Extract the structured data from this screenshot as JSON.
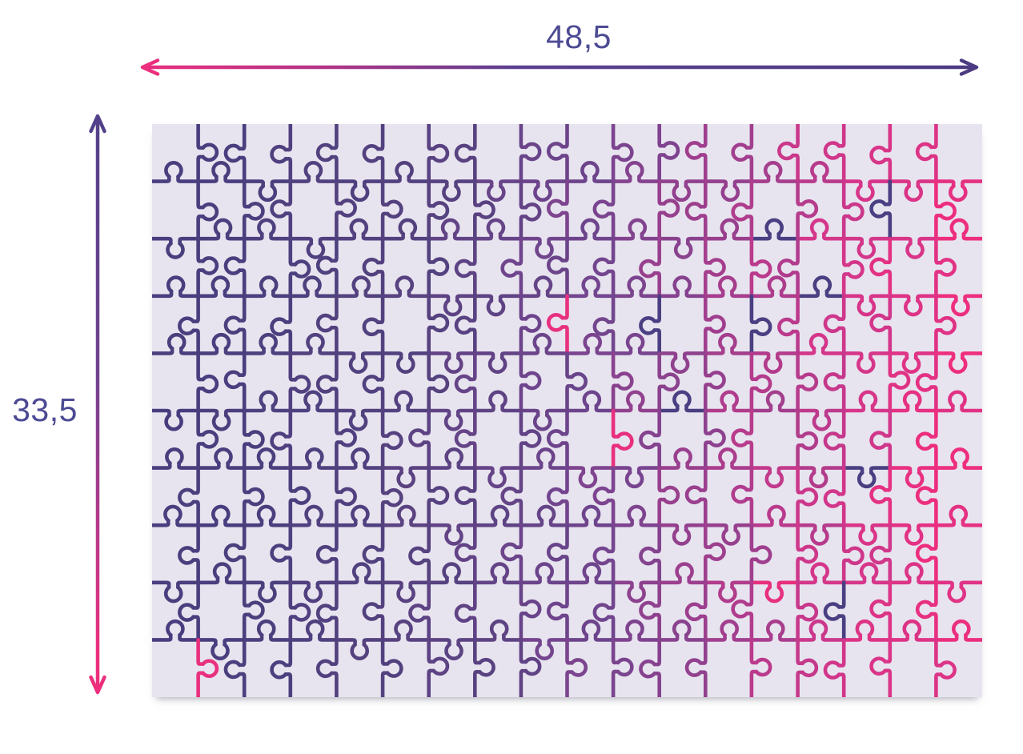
{
  "figure": {
    "description": "Jigsaw puzzle dimensions diagram"
  },
  "dimensions": {
    "width_label": "48,5",
    "height_label": "33,5"
  },
  "colors": {
    "page_bg": "#ffffff",
    "puzzle_bg": "#e7e4ef",
    "label_text": "#4d4a94",
    "accent_pink": "#e8307f",
    "accent_indigo": "#4a3f82",
    "arrow_gradient_h": {
      "start": "#ec2e7d",
      "mid1": "#b33487",
      "mid2": "#5b4190",
      "end": "#4c3b81"
    },
    "arrow_gradient_v": {
      "start": "#53408a",
      "mid1": "#70418e",
      "mid2": "#b8388a",
      "end": "#ec2e7d"
    }
  },
  "puzzle": {
    "rows": 10,
    "cols": 18,
    "view_width": 1037,
    "view_height": 716,
    "stroke_width": 4.6,
    "seed": 1337,
    "color_ramp": [
      [
        0.0,
        "#473d7e"
      ],
      [
        0.32,
        "#55427f"
      ],
      [
        0.52,
        "#74458f"
      ],
      [
        0.68,
        "#9c3f8e"
      ],
      [
        0.85,
        "#d5368a"
      ],
      [
        1.0,
        "#ee2e7e"
      ]
    ],
    "pink_accent_probability": 0.018,
    "indigo_accent_min_t": 0.63,
    "indigo_accent_probability": 0.14,
    "position_jitter": 0.11
  }
}
